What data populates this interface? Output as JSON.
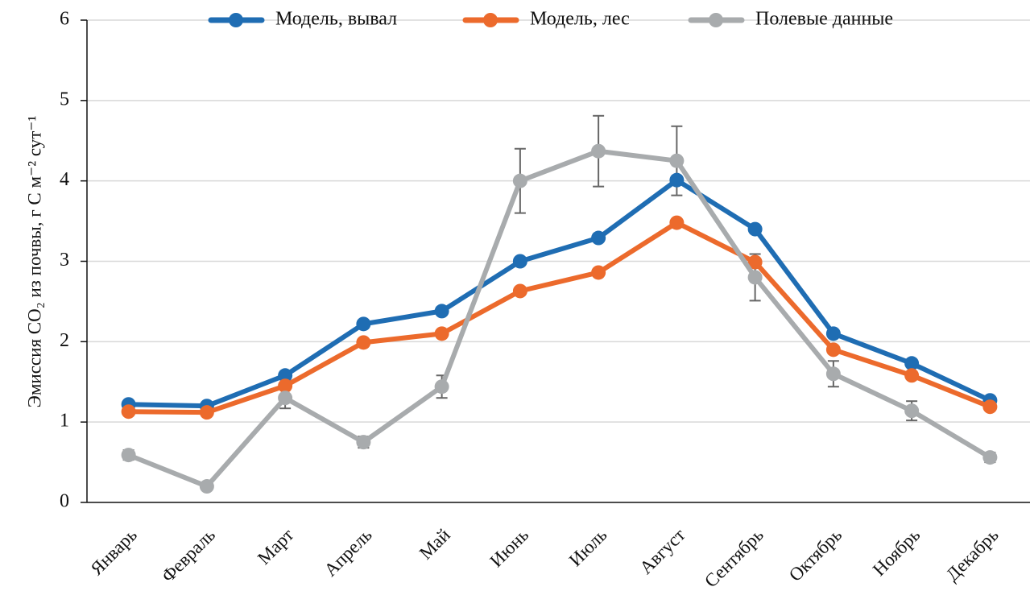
{
  "chart_data": {
    "type": "line",
    "y_label": "Эмиссия CO₂ из почвы, г C м⁻² сут⁻¹",
    "categories": [
      "Январь",
      "Февраль",
      "Март",
      "Апрель",
      "Май",
      "Июнь",
      "Июль",
      "Август",
      "Сентябрь",
      "Октябрь",
      "Ноябрь",
      "Декабрь"
    ],
    "series": [
      {
        "name": "Модель, вывал",
        "color": "#1f6db3",
        "values": [
          1.22,
          1.2,
          1.58,
          2.22,
          2.38,
          3.0,
          3.29,
          4.01,
          3.4,
          2.1,
          1.73,
          1.27
        ]
      },
      {
        "name": "Модель, лес",
        "color": "#ec6a2c",
        "values": [
          1.13,
          1.12,
          1.45,
          1.99,
          2.1,
          2.63,
          2.86,
          3.48,
          2.99,
          1.9,
          1.58,
          1.19
        ]
      },
      {
        "name": "Полевые данные",
        "color": "#a8abad",
        "values": [
          0.59,
          0.2,
          1.3,
          0.75,
          1.44,
          4.0,
          4.37,
          4.25,
          2.8,
          1.6,
          1.14,
          0.56
        ],
        "errors": [
          0.06,
          0.02,
          0.13,
          0.07,
          0.14,
          0.4,
          0.44,
          0.43,
          0.29,
          0.16,
          0.12,
          0.06
        ]
      }
    ],
    "ylim": [
      0,
      6
    ],
    "yticks": [
      0,
      1,
      2,
      3,
      4,
      5,
      6
    ],
    "grid": true,
    "legend": "top"
  }
}
